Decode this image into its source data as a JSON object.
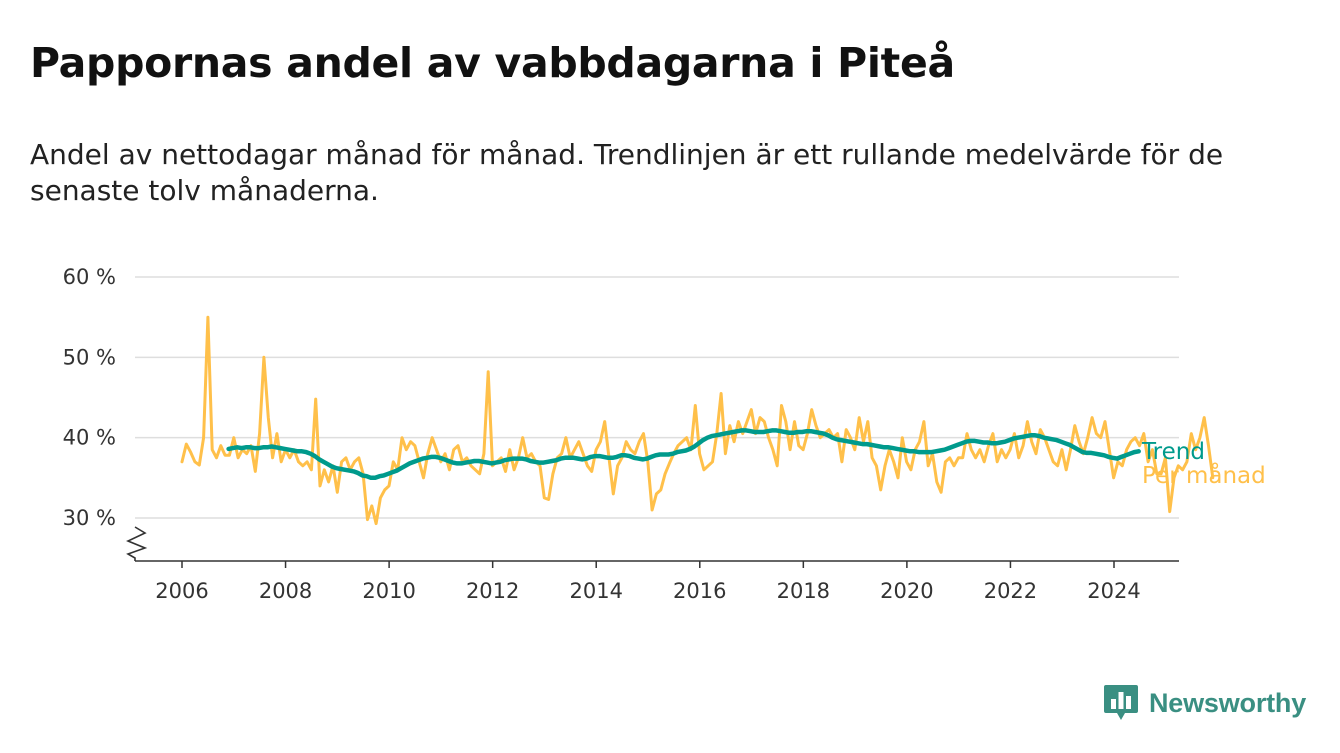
{
  "title": "Pappornas andel av vabbdagarna i Piteå",
  "subtitle": "Andel av nettodagar månad för månad. Trendlinjen är ett rullande medelvärde för de senaste tolv månaderna.",
  "brand": "Newsworthy",
  "colors": {
    "trend": "#009a8c",
    "monthly": "#ffc04a",
    "grid": "#dedede",
    "axis": "#333333",
    "brand": "#3a8f82"
  },
  "chart_data": {
    "type": "line",
    "y_tick_labels": [
      "30 %",
      "40 %",
      "50 %",
      "60 %"
    ],
    "y_ticks": [
      30,
      40,
      50,
      60
    ],
    "ylim": [
      25,
      60
    ],
    "y_axis_break": true,
    "x_tick_labels": [
      "2006",
      "2008",
      "2010",
      "2012",
      "2014",
      "2016",
      "2018",
      "2020",
      "2022",
      "2024"
    ],
    "x_ticks": [
      2006,
      2008,
      2010,
      2012,
      2014,
      2016,
      2018,
      2020,
      2022,
      2024
    ],
    "xlim": [
      2005.1,
      2025.2
    ],
    "grid": "horizontal",
    "legend": "inline labels at line ends",
    "series": [
      {
        "name": "Per månad",
        "color": "#ffc04a",
        "x_start": 2006.0,
        "step": 0.0833,
        "values": [
          37.0,
          39.2,
          38.2,
          37.0,
          36.6,
          40.0,
          55.0,
          38.5,
          37.5,
          39.0,
          37.8,
          37.8,
          40.0,
          37.5,
          38.5,
          38.0,
          39.0,
          35.8,
          40.5,
          50.0,
          42.5,
          37.5,
          40.5,
          37.0,
          38.5,
          37.5,
          38.5,
          37.0,
          36.5,
          37.0,
          36.0,
          44.8,
          34.0,
          36.0,
          34.5,
          36.5,
          33.2,
          37.0,
          37.5,
          36.0,
          37.0,
          37.5,
          35.5,
          29.8,
          31.5,
          29.3,
          32.5,
          33.5,
          34.0,
          37.0,
          36.0,
          40.0,
          38.5,
          39.5,
          39.0,
          37.0,
          35.0,
          38.0,
          40.0,
          38.5,
          37.0,
          38.0,
          36.0,
          38.5,
          39.0,
          37.0,
          37.5,
          36.5,
          36.0,
          35.5,
          38.0,
          48.2,
          36.5,
          37.0,
          37.5,
          35.8,
          38.5,
          36.0,
          37.5,
          40.0,
          37.5,
          38.0,
          37.0,
          36.5,
          32.5,
          32.3,
          35.5,
          37.5,
          38.0,
          40.0,
          37.5,
          38.5,
          39.5,
          38.0,
          36.5,
          35.8,
          38.5,
          39.5,
          42.0,
          37.5,
          33.0,
          36.5,
          37.5,
          39.5,
          38.5,
          38.0,
          39.5,
          40.5,
          37.0,
          31.0,
          33.0,
          33.5,
          35.5,
          36.8,
          38.0,
          39.0,
          39.5,
          40.0,
          38.5,
          44.0,
          38.0,
          36.0,
          36.5,
          37.0,
          40.5,
          45.5,
          38.0,
          41.5,
          39.5,
          42.0,
          40.5,
          42.0,
          43.5,
          40.5,
          42.5,
          42.0,
          40.0,
          38.5,
          36.5,
          44.0,
          42.0,
          38.5,
          42.0,
          39.0,
          38.5,
          40.5,
          43.5,
          41.5,
          40.0,
          40.5,
          41.0,
          40.0,
          40.5,
          37.0,
          41.0,
          40.0,
          38.5,
          42.5,
          39.5,
          42.0,
          37.5,
          36.5,
          33.5,
          36.5,
          38.5,
          37.0,
          35.0,
          40.0,
          37.0,
          36.0,
          38.5,
          39.5,
          42.0,
          36.5,
          38.0,
          34.5,
          33.2,
          37.0,
          37.5,
          36.5,
          37.5,
          37.5,
          40.5,
          38.5,
          37.5,
          38.5,
          37.0,
          39.0,
          40.5,
          37.0,
          38.5,
          37.5,
          38.5,
          40.5,
          37.5,
          39.0,
          42.0,
          39.5,
          38.0,
          41.0,
          40.0,
          38.5,
          37.0,
          36.5,
          38.5,
          36.0,
          38.5,
          41.5,
          39.5,
          38.0,
          40.0,
          42.5,
          40.5,
          40.0,
          42.0,
          38.5,
          35.0,
          37.0,
          36.5,
          38.5,
          39.5,
          40.0,
          39.0,
          40.5,
          37.0,
          38.5,
          35.5,
          35.5,
          37.5,
          30.8,
          35.0,
          36.5,
          36.0,
          37.0,
          40.5,
          38.5,
          40.0,
          42.5,
          39.0,
          35.0
        ]
      },
      {
        "name": "Trend",
        "color": "#009a8c",
        "x_start": 2006.9,
        "step": 0.0833,
        "values": [
          38.6,
          38.7,
          38.8,
          38.7,
          38.8,
          38.8,
          38.7,
          38.7,
          38.8,
          38.8,
          38.9,
          38.8,
          38.7,
          38.6,
          38.5,
          38.4,
          38.3,
          38.3,
          38.2,
          38.0,
          37.7,
          37.3,
          37.0,
          36.7,
          36.4,
          36.2,
          36.1,
          36.0,
          35.9,
          35.8,
          35.6,
          35.3,
          35.2,
          35.0,
          35.0,
          35.2,
          35.3,
          35.5,
          35.7,
          35.9,
          36.2,
          36.5,
          36.8,
          37.0,
          37.2,
          37.4,
          37.5,
          37.6,
          37.6,
          37.5,
          37.3,
          37.1,
          36.9,
          36.8,
          36.8,
          36.9,
          37.0,
          37.1,
          37.1,
          37.0,
          36.9,
          36.8,
          36.9,
          37.0,
          37.2,
          37.3,
          37.4,
          37.4,
          37.4,
          37.3,
          37.1,
          37.0,
          36.9,
          36.9,
          37.0,
          37.1,
          37.2,
          37.4,
          37.5,
          37.5,
          37.5,
          37.4,
          37.3,
          37.4,
          37.6,
          37.7,
          37.7,
          37.6,
          37.5,
          37.5,
          37.6,
          37.8,
          37.8,
          37.7,
          37.5,
          37.4,
          37.3,
          37.4,
          37.6,
          37.8,
          37.9,
          37.9,
          37.9,
          38.0,
          38.2,
          38.3,
          38.4,
          38.6,
          38.9,
          39.3,
          39.7,
          40.0,
          40.2,
          40.3,
          40.4,
          40.5,
          40.6,
          40.7,
          40.8,
          40.9,
          40.9,
          40.8,
          40.7,
          40.7,
          40.7,
          40.8,
          40.9,
          40.9,
          40.8,
          40.7,
          40.6,
          40.6,
          40.7,
          40.7,
          40.8,
          40.8,
          40.7,
          40.6,
          40.5,
          40.3,
          40.0,
          39.8,
          39.7,
          39.6,
          39.5,
          39.4,
          39.3,
          39.2,
          39.2,
          39.1,
          39.0,
          38.9,
          38.8,
          38.8,
          38.7,
          38.6,
          38.5,
          38.4,
          38.3,
          38.3,
          38.2,
          38.2,
          38.2,
          38.2,
          38.3,
          38.4,
          38.5,
          38.7,
          38.9,
          39.1,
          39.3,
          39.5,
          39.6,
          39.6,
          39.5,
          39.4,
          39.4,
          39.3,
          39.3,
          39.4,
          39.5,
          39.7,
          39.9,
          40.0,
          40.1,
          40.2,
          40.3,
          40.3,
          40.2,
          40.0,
          39.9,
          39.8,
          39.7,
          39.5,
          39.3,
          39.1,
          38.8,
          38.5,
          38.2,
          38.1,
          38.1,
          38.0,
          37.9,
          37.8,
          37.6,
          37.5,
          37.4,
          37.6,
          37.8,
          38.0,
          38.2,
          38.3
        ]
      }
    ]
  }
}
